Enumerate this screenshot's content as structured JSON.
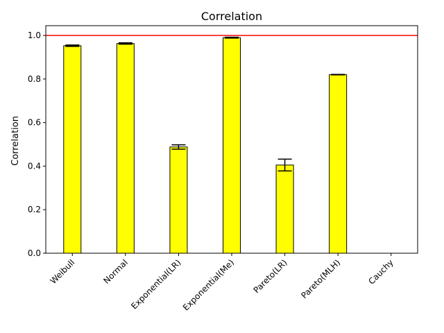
{
  "chart_data": {
    "type": "bar",
    "title": "Correlation",
    "xlabel": "",
    "ylabel": "Correlation",
    "categories": [
      "Weibull",
      "Normal",
      "Exponential(LR)",
      "Exponential(Me)",
      "Pareto(LR)",
      "Pareto(MLH)",
      "Cauchy"
    ],
    "values": [
      0.953,
      0.963,
      0.488,
      0.99,
      0.405,
      0.82,
      null
    ],
    "errors": [
      0.003,
      0.003,
      0.01,
      0.002,
      0.027,
      0.001,
      null
    ],
    "ylim": [
      0,
      1.045
    ],
    "yticks": [
      "0.0",
      "0.2",
      "0.4",
      "0.6",
      "0.8",
      "1.0"
    ],
    "reference_line": {
      "y": 1.0,
      "color": "#ff0000"
    },
    "bar_color": "#ffff00",
    "edge_color": "#000000",
    "grid": false,
    "xtick_rotation_deg": 45
  }
}
